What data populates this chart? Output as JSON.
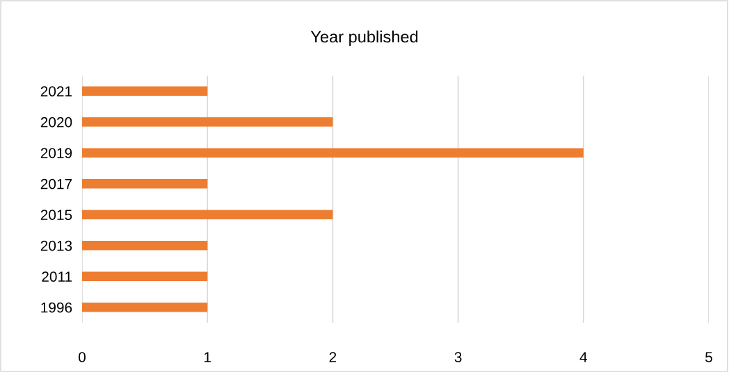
{
  "chart_data": {
    "type": "bar",
    "orientation": "horizontal",
    "title": "Year published",
    "categories": [
      "2021",
      "2020",
      "2019",
      "2017",
      "2015",
      "2013",
      "2011",
      "1996"
    ],
    "values": [
      1,
      2,
      4,
      1,
      2,
      1,
      1,
      1
    ],
    "color": "#ed7d31",
    "xlim": [
      0,
      5
    ],
    "xticks": [
      0,
      1,
      2,
      3,
      4,
      5
    ],
    "grid": "x",
    "legend": false
  }
}
